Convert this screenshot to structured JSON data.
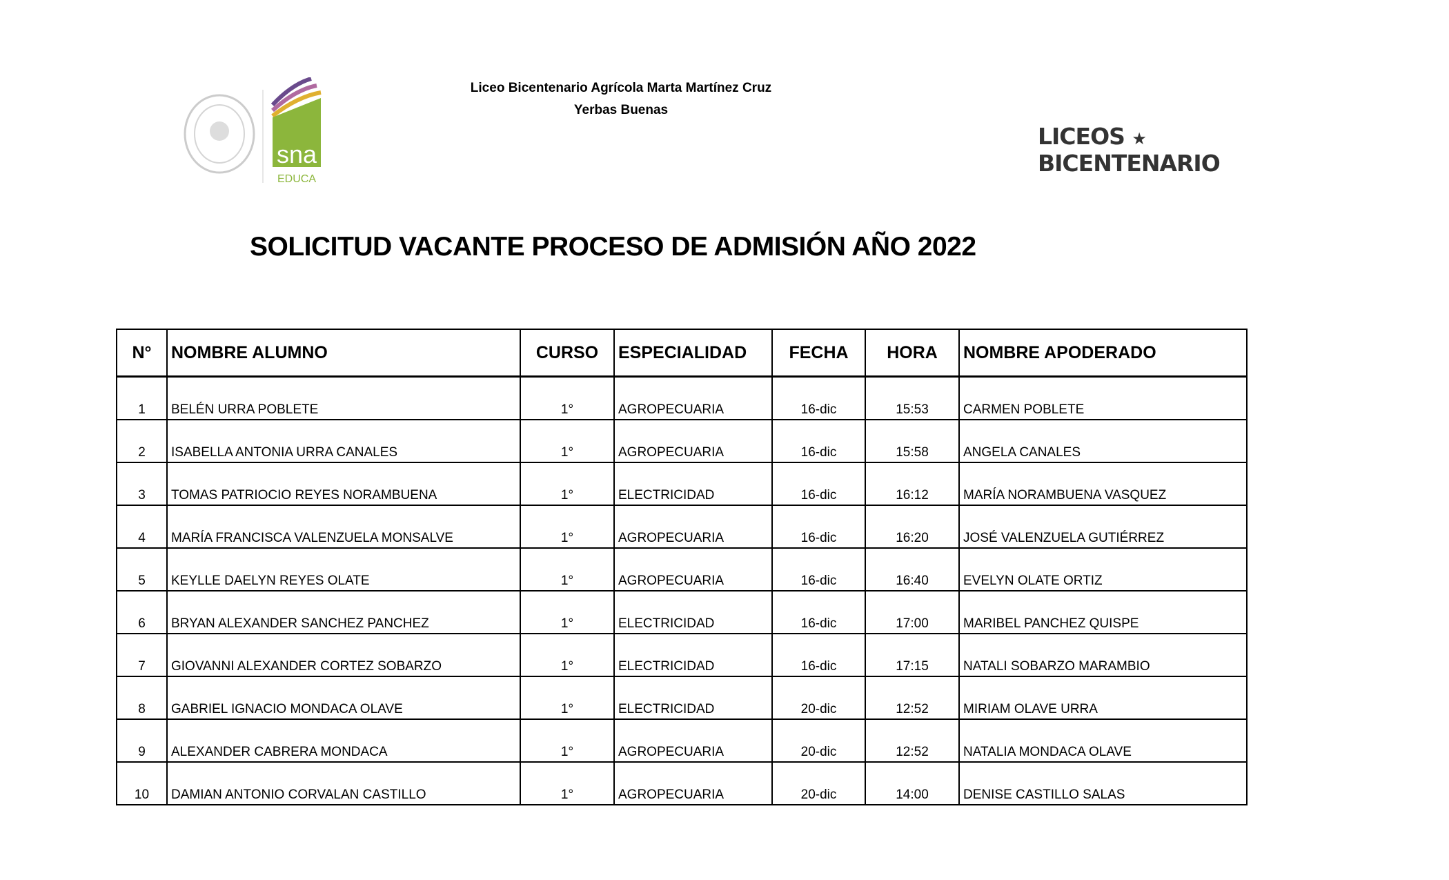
{
  "header": {
    "school": "Liceo Bicentenario Agrícola Marta Martínez Cruz",
    "town": "Yerbas Buenas"
  },
  "logos": {
    "sna": "sna",
    "sna_sub": "EDUCA",
    "liceos_line1": "LICEOS",
    "liceos_line2": "BICENTENARIO",
    "sna_color": "#8cb63c"
  },
  "title": "SOLICITUD VACANTE PROCESO DE ADMISIÓN AÑO 2022",
  "table": {
    "columns": [
      "N°",
      "NOMBRE ALUMNO",
      "CURSO",
      "ESPECIALIDAD",
      "FECHA",
      "HORA",
      "NOMBRE APODERADO"
    ],
    "rows": [
      [
        "1",
        "BELÉN URRA POBLETE",
        "1°",
        "AGROPECUARIA",
        "16-dic",
        "15:53",
        "CARMEN POBLETE"
      ],
      [
        "2",
        "ISABELLA ANTONIA URRA CANALES",
        "1°",
        "AGROPECUARIA",
        "16-dic",
        "15:58",
        "ANGELA CANALES"
      ],
      [
        "3",
        "TOMAS PATRIOCIO REYES NORAMBUENA",
        "1°",
        "ELECTRICIDAD",
        "16-dic",
        "16:12",
        "MARÍA NORAMBUENA VASQUEZ"
      ],
      [
        "4",
        "MARÍA FRANCISCA VALENZUELA MONSALVE",
        "1°",
        "AGROPECUARIA",
        "16-dic",
        "16:20",
        "JOSÉ VALENZUELA GUTIÉRREZ"
      ],
      [
        "5",
        "KEYLLE DAELYN REYES OLATE",
        "1°",
        "AGROPECUARIA",
        "16-dic",
        "16:40",
        "EVELYN OLATE ORTIZ"
      ],
      [
        "6",
        "BRYAN ALEXANDER SANCHEZ PANCHEZ",
        "1°",
        "ELECTRICIDAD",
        "16-dic",
        "17:00",
        "MARIBEL PANCHEZ QUISPE"
      ],
      [
        "7",
        "GIOVANNI ALEXANDER CORTEZ SOBARZO",
        "1°",
        "ELECTRICIDAD",
        "16-dic",
        "17:15",
        "NATALI SOBARZO MARAMBIO"
      ],
      [
        "8",
        "GABRIEL IGNACIO MONDACA OLAVE",
        "1°",
        "ELECTRICIDAD",
        "20-dic",
        "12:52",
        "MIRIAM OLAVE URRA"
      ],
      [
        "9",
        "ALEXANDER CABRERA MONDACA",
        "1°",
        "AGROPECUARIA",
        "20-dic",
        "12:52",
        "NATALIA MONDACA OLAVE"
      ],
      [
        "10",
        "DAMIAN ANTONIO CORVALAN CASTILLO",
        "1°",
        "AGROPECUARIA",
        "20-dic",
        "14:00",
        "DENISE CASTILLO SALAS"
      ]
    ]
  }
}
